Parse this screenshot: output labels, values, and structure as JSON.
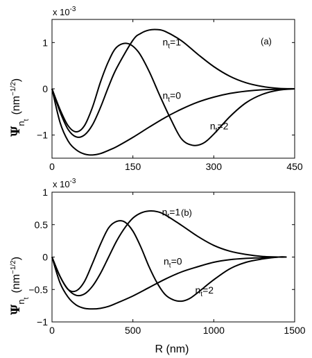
{
  "figure": {
    "colors": {
      "line": "#000000",
      "background": "#ffffff"
    }
  },
  "chart_data": [
    {
      "type": "line",
      "panel_tag": "(a)",
      "exponent_label": "x 10",
      "exponent_power": "-3",
      "xlabel": "",
      "ylabel": {
        "symbol": "Ψ",
        "sub": "n",
        "subsub": "t",
        "units_prefix": "(nm",
        "units_power": "−1/2",
        "units_suffix": ")"
      },
      "xlim": [
        0,
        450
      ],
      "ylim": [
        -1.5,
        1.5
      ],
      "x_ticks": [
        0,
        150,
        300,
        450
      ],
      "x_tick_labels": [
        "0",
        "150",
        "300",
        "450"
      ],
      "y_ticks": [
        -1,
        0,
        1
      ],
      "y_tick_labels": [
        "−1",
        "0",
        "1"
      ],
      "series": [
        {
          "name": "n_t=0",
          "label": {
            "pre": "n",
            "sub": "t",
            "post": "=0"
          },
          "label_at": [
            205,
            -0.22
          ],
          "x": [
            0,
            15,
            30,
            45,
            60,
            75,
            90,
            105,
            120,
            150,
            180,
            210,
            240,
            270,
            300,
            330,
            360,
            390,
            420,
            450
          ],
          "y": [
            0,
            -0.73,
            -1.13,
            -1.32,
            -1.41,
            -1.43,
            -1.4,
            -1.33,
            -1.25,
            -1.05,
            -0.83,
            -0.62,
            -0.44,
            -0.29,
            -0.18,
            -0.1,
            -0.05,
            -0.02,
            -0.01,
            0
          ]
        },
        {
          "name": "n_t=1",
          "label": {
            "pre": "n",
            "sub": "t",
            "post": "=1"
          },
          "label_at": [
            205,
            0.94
          ],
          "x": [
            0,
            15,
            30,
            45,
            60,
            75,
            90,
            105,
            120,
            150,
            165,
            180,
            195,
            210,
            240,
            270,
            300,
            330,
            360,
            390,
            420,
            450
          ],
          "y": [
            0,
            -0.5,
            -0.88,
            -1.04,
            -1.0,
            -0.78,
            -0.4,
            0.05,
            0.45,
            1.05,
            1.2,
            1.27,
            1.28,
            1.24,
            1.04,
            0.75,
            0.48,
            0.27,
            0.13,
            0.05,
            0.01,
            0
          ]
        },
        {
          "name": "n_t=2",
          "label": {
            "pre": "n",
            "sub": "t",
            "post": "=2"
          },
          "label_at": [
            293,
            -0.88
          ],
          "x": [
            0,
            15,
            30,
            45,
            60,
            75,
            90,
            105,
            120,
            140,
            160,
            180,
            200,
            220,
            240,
            260,
            280,
            300,
            330,
            360,
            390,
            420,
            450
          ],
          "y": [
            0,
            -0.45,
            -0.8,
            -0.93,
            -0.8,
            -0.4,
            0.15,
            0.6,
            0.9,
            0.98,
            0.8,
            0.38,
            -0.15,
            -0.65,
            -1.08,
            -1.22,
            -1.18,
            -0.98,
            -0.6,
            -0.3,
            -0.12,
            -0.03,
            0
          ]
        }
      ]
    },
    {
      "type": "line",
      "panel_tag": "(b)",
      "exponent_label": "x 10",
      "exponent_power": "-3",
      "xlabel": "R (nm)",
      "ylabel": {
        "symbol": "Ψ",
        "sub": "n",
        "subsub": "t",
        "units_prefix": "(nm",
        "units_power": "−1/2",
        "units_suffix": ")"
      },
      "xlim": [
        0,
        1500
      ],
      "ylim": [
        -1,
        1
      ],
      "x_ticks": [
        0,
        500,
        1000,
        1500
      ],
      "x_tick_labels": [
        "0",
        "500",
        "1000",
        "1500"
      ],
      "y_ticks": [
        -1,
        -0.5,
        0,
        0.5,
        1
      ],
      "y_tick_labels": [
        "−1",
        "−0.5",
        "0",
        "0.5",
        "1"
      ],
      "series": [
        {
          "name": "n_t=0",
          "label": {
            "pre": "n",
            "sub": "t",
            "post": "=0"
          },
          "label_at": [
            690,
            -0.12
          ],
          "x": [
            0,
            50,
            100,
            150,
            200,
            250,
            300,
            350,
            400,
            500,
            600,
            700,
            800,
            900,
            1000,
            1100,
            1200,
            1300,
            1400,
            1450
          ],
          "y": [
            0,
            -0.4,
            -0.62,
            -0.74,
            -0.79,
            -0.8,
            -0.79,
            -0.76,
            -0.71,
            -0.6,
            -0.47,
            -0.34,
            -0.23,
            -0.15,
            -0.08,
            -0.04,
            -0.02,
            -0.01,
            0,
            0
          ]
        },
        {
          "name": "n_t=1",
          "label": {
            "pre": "n",
            "sub": "t",
            "post": "=1"
          },
          "label_at": [
            680,
            0.64
          ],
          "x": [
            0,
            50,
            100,
            150,
            200,
            250,
            300,
            350,
            400,
            450,
            500,
            550,
            600,
            650,
            700,
            800,
            900,
            1000,
            1100,
            1200,
            1300,
            1400,
            1450
          ],
          "y": [
            0,
            -0.3,
            -0.5,
            -0.59,
            -0.57,
            -0.45,
            -0.25,
            0.0,
            0.25,
            0.45,
            0.6,
            0.68,
            0.71,
            0.7,
            0.65,
            0.49,
            0.32,
            0.18,
            0.09,
            0.04,
            0.01,
            0,
            0
          ]
        },
        {
          "name": "n_t=2",
          "label": {
            "pre": "n",
            "sub": "t",
            "post": "=2"
          },
          "label_at": [
            885,
            -0.56
          ],
          "x": [
            0,
            50,
            100,
            150,
            200,
            250,
            300,
            350,
            400,
            450,
            500,
            550,
            600,
            650,
            700,
            750,
            800,
            850,
            900,
            1000,
            1100,
            1200,
            1300,
            1400,
            1450
          ],
          "y": [
            0,
            -0.3,
            -0.5,
            -0.52,
            -0.38,
            -0.1,
            0.2,
            0.45,
            0.55,
            0.54,
            0.4,
            0.15,
            -0.15,
            -0.4,
            -0.58,
            -0.66,
            -0.68,
            -0.64,
            -0.55,
            -0.35,
            -0.18,
            -0.08,
            -0.03,
            0,
            0
          ]
        }
      ]
    }
  ]
}
